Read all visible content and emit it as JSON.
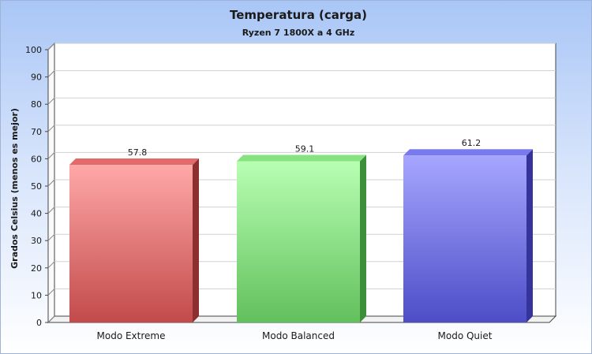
{
  "chart_data": {
    "type": "bar",
    "title": "Temperatura (carga)",
    "subtitle": "Ryzen 7 1800X a 4 GHz",
    "xlabel": "",
    "ylabel": "Grados Celsius (menos es mejor)",
    "categories": [
      "Modo Extreme",
      "Modo Balanced",
      "Modo Quiet"
    ],
    "values": [
      57.8,
      59.1,
      61.2
    ],
    "value_labels": [
      "57.8",
      "59.1",
      "61.2"
    ],
    "ylim": [
      0,
      100
    ],
    "yticks": [
      0,
      10,
      20,
      30,
      40,
      50,
      60,
      70,
      80,
      90,
      100
    ],
    "grid": true,
    "style": "3d",
    "colors": [
      {
        "top": "#ffa8a8",
        "bottom": "#c24a4a",
        "side": "#8d2f2f",
        "cap": "#e26a6a"
      },
      {
        "top": "#b8ffb3",
        "bottom": "#62c05c",
        "side": "#3e8f3a",
        "cap": "#86e37f"
      },
      {
        "top": "#a6a6ff",
        "bottom": "#4d4dc7",
        "side": "#34349a",
        "cap": "#7a7af0"
      }
    ]
  }
}
